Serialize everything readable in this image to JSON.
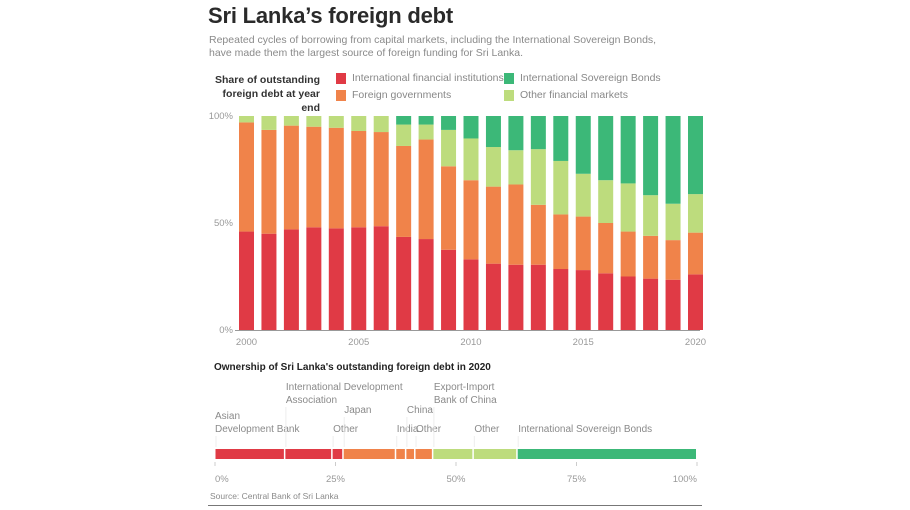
{
  "title": "Sri Lanka’s foreign debt",
  "subtitle": "Repeated cycles of borrowing from capital markets, including the International Sovereign Bonds, have made them the largest source of foreign funding for Sri Lanka.",
  "legend_title_line1": "Share of outstanding",
  "legend_title_line2": "foreign debt at year end",
  "colors": {
    "International financial institutions": "#e03a45",
    "Foreign governments": "#f0834a",
    "International Sovereign Bonds": "#3cb878",
    "Other financial markets": "#bddc7d"
  },
  "chart_data": [
    {
      "type": "bar",
      "stacked": true,
      "title": "Share of outstanding foreign debt at year end",
      "legend": "top",
      "ylim": [
        0,
        100
      ],
      "y_ticks": [
        "0%",
        "50%",
        "100%"
      ],
      "x_tick_labels": [
        "2000",
        "2005",
        "2010",
        "2015",
        "2020"
      ],
      "categories": [
        2000,
        2001,
        2002,
        2003,
        2004,
        2005,
        2006,
        2007,
        2008,
        2009,
        2010,
        2011,
        2012,
        2013,
        2014,
        2015,
        2016,
        2017,
        2018,
        2019,
        2020
      ],
      "series": [
        {
          "name": "International financial institutions",
          "values": [
            46,
            45,
            47,
            48,
            47.5,
            48,
            48.5,
            43.5,
            42.5,
            37.5,
            33,
            31,
            30.5,
            30.5,
            28.5,
            28,
            26.5,
            25,
            24,
            23.5,
            26
          ]
        },
        {
          "name": "Foreign governments",
          "values": [
            51,
            48.5,
            48.5,
            47,
            47,
            45,
            44,
            42.5,
            46.5,
            39,
            37,
            36,
            37.5,
            28,
            25.5,
            25,
            23.5,
            21,
            20,
            18.5,
            19.5
          ]
        },
        {
          "name": "Other financial markets",
          "values": [
            3,
            6.5,
            4.5,
            5,
            5.5,
            7,
            7.5,
            10,
            7,
            17,
            19.5,
            18.5,
            16,
            26,
            25,
            20,
            20,
            22.5,
            19,
            17,
            18
          ]
        },
        {
          "name": "International Sovereign Bonds",
          "values": [
            0,
            0,
            0,
            0,
            0,
            0,
            0,
            4,
            4,
            6.5,
            10.5,
            14.5,
            16,
            15.5,
            21,
            27,
            30,
            31.5,
            37,
            41,
            36.5
          ]
        }
      ]
    },
    {
      "type": "bar",
      "stacked": true,
      "orientation": "horizontal",
      "title": "Ownership of Sri Lanka's outstanding foreign debt in 2020",
      "x_ticks": [
        "0%",
        "25%",
        "50%",
        "75%",
        "100%"
      ],
      "xlim": [
        0,
        100
      ],
      "segments": [
        {
          "label_lines": [
            "Asian",
            "Development Bank"
          ],
          "group": "International financial institutions",
          "value": 14.5
        },
        {
          "label_lines": [
            "International Development",
            "Association"
          ],
          "group": "International financial institutions",
          "value": 9.8
        },
        {
          "label_lines": [
            "Other"
          ],
          "group": "International financial institutions",
          "value": 2.3
        },
        {
          "label_lines": [
            "Japan"
          ],
          "group": "Foreign governments",
          "value": 10.9
        },
        {
          "label_lines": [
            "India"
          ],
          "group": "Foreign governments",
          "value": 2.1
        },
        {
          "label_lines": [
            "China"
          ],
          "group": "Foreign governments",
          "value": 1.9
        },
        {
          "label_lines": [
            "Other"
          ],
          "group": "Foreign governments",
          "value": 3.7
        },
        {
          "label_lines": [
            "Export-Import",
            "Bank of China"
          ],
          "group": "Other financial markets",
          "value": 8.4
        },
        {
          "label_lines": [
            "Other"
          ],
          "group": "Other financial markets",
          "value": 9.1
        },
        {
          "label_lines": [
            "International Sovereign Bonds"
          ],
          "group": "International Sovereign Bonds",
          "value": 37.3
        }
      ]
    }
  ],
  "source": "Source: Central Bank of Sri Lanka"
}
